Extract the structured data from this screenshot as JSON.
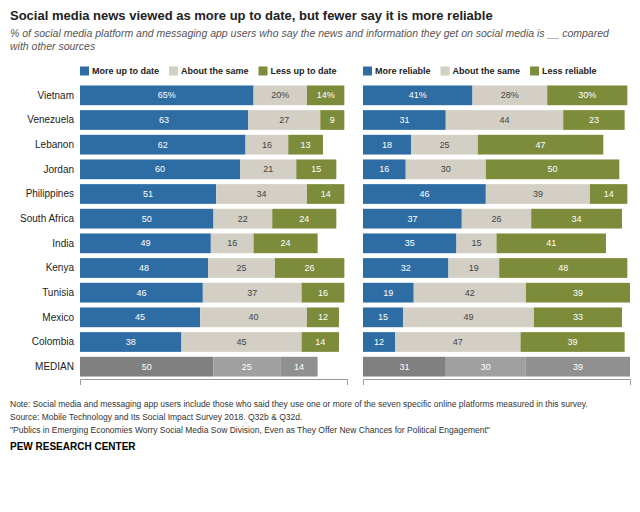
{
  "chart_data": [
    {
      "type": "bar",
      "orientation": "horizontal",
      "stacked": true,
      "data_labels": true,
      "tick_labels": "y",
      "legend": "top",
      "title": "Social media news viewed as more up to date, but fewer say it is more reliable",
      "subtitle": "% of social media platform and messaging app users who say the news and information they get on social media is __ compared with other sources",
      "categories": [
        "Vietnam",
        "Venezuela",
        "Lebanon",
        "Jordan",
        "Philippines",
        "South Africa",
        "India",
        "Kenya",
        "Tunisia",
        "Mexico",
        "Colombia",
        "MEDIAN"
      ],
      "xlim": [
        0,
        100
      ],
      "series": [
        {
          "name": "More up to date",
          "color": "#2e6da4",
          "colors": [
            "#2e6da4",
            "#2e6da4",
            "#2e6da4",
            "#2e6da4",
            "#2e6da4",
            "#2e6da4",
            "#2e6da4",
            "#2e6da4",
            "#2e6da4",
            "#2e6da4",
            "#2e6da4",
            "#808080"
          ],
          "values": [
            65,
            63,
            62,
            60,
            51,
            50,
            49,
            48,
            46,
            45,
            38,
            50
          ],
          "value_labels": [
            "65%",
            "63",
            "62",
            "60",
            "51",
            "50",
            "49",
            "48",
            "46",
            "45",
            "38",
            "50"
          ]
        },
        {
          "name": "About the same",
          "color": "#d3cfc4",
          "colors": [
            "#d3cfc4",
            "#d3cfc4",
            "#d3cfc4",
            "#d3cfc4",
            "#d3cfc4",
            "#d3cfc4",
            "#d3cfc4",
            "#d3cfc4",
            "#d3cfc4",
            "#d3cfc4",
            "#d3cfc4",
            "#a0a0a0"
          ],
          "values": [
            20,
            27,
            16,
            21,
            34,
            22,
            16,
            25,
            37,
            40,
            45,
            25
          ],
          "value_labels": [
            "20%",
            "27",
            "16",
            "21",
            "34",
            "22",
            "16",
            "25",
            "37",
            "40",
            "45",
            "25"
          ]
        },
        {
          "name": "Less up to date",
          "color": "#7d8c3a",
          "colors": [
            "#7d8c3a",
            "#7d8c3a",
            "#7d8c3a",
            "#7d8c3a",
            "#7d8c3a",
            "#7d8c3a",
            "#7d8c3a",
            "#7d8c3a",
            "#7d8c3a",
            "#7d8c3a",
            "#7d8c3a",
            "#909090"
          ],
          "values": [
            14,
            9,
            13,
            15,
            14,
            24,
            24,
            26,
            16,
            12,
            14,
            14
          ],
          "value_labels": [
            "14%",
            "9",
            "13",
            "15",
            "14",
            "24",
            "24",
            "26",
            "16",
            "12",
            "14",
            "14"
          ]
        }
      ],
      "annotations": [
        "Note: Social media and messaging app users include those who said they use one or more of the seven specific online platforms measured in this survey.",
        "Source: Mobile Technology and Its Social Impact Survey 2018. Q32b & Q32d.",
        "\"Publics in Emerging Economies Worry Social Media Sow Division, Even as They Offer New Chances for Political Engagement\"",
        "PEW RESEARCH CENTER"
      ]
    },
    {
      "type": "bar",
      "orientation": "horizontal",
      "stacked": true,
      "data_labels": true,
      "tick_labels": false,
      "legend": "top",
      "categories": [
        "Vietnam",
        "Venezuela",
        "Lebanon",
        "Jordan",
        "Philippines",
        "South Africa",
        "India",
        "Kenya",
        "Tunisia",
        "Mexico",
        "Colombia",
        "MEDIAN"
      ],
      "xlim": [
        0,
        100
      ],
      "series": [
        {
          "name": "More reliable",
          "color": "#2e6da4",
          "colors": [
            "#2e6da4",
            "#2e6da4",
            "#2e6da4",
            "#2e6da4",
            "#2e6da4",
            "#2e6da4",
            "#2e6da4",
            "#2e6da4",
            "#2e6da4",
            "#2e6da4",
            "#2e6da4",
            "#808080"
          ],
          "values": [
            41,
            31,
            18,
            16,
            46,
            37,
            35,
            32,
            19,
            15,
            12,
            31
          ],
          "value_labels": [
            "41%",
            "31",
            "18",
            "16",
            "46",
            "37",
            "35",
            "32",
            "19",
            "15",
            "12",
            "31"
          ]
        },
        {
          "name": "About the same",
          "color": "#d3cfc4",
          "colors": [
            "#d3cfc4",
            "#d3cfc4",
            "#d3cfc4",
            "#d3cfc4",
            "#d3cfc4",
            "#d3cfc4",
            "#d3cfc4",
            "#d3cfc4",
            "#d3cfc4",
            "#d3cfc4",
            "#d3cfc4",
            "#a0a0a0"
          ],
          "values": [
            28,
            44,
            25,
            30,
            39,
            26,
            15,
            19,
            42,
            49,
            47,
            30
          ],
          "value_labels": [
            "28%",
            "44",
            "25",
            "30",
            "39",
            "26",
            "15",
            "19",
            "42",
            "49",
            "47",
            "30"
          ]
        },
        {
          "name": "Less reliable",
          "color": "#7d8c3a",
          "colors": [
            "#7d8c3a",
            "#7d8c3a",
            "#7d8c3a",
            "#7d8c3a",
            "#7d8c3a",
            "#7d8c3a",
            "#7d8c3a",
            "#7d8c3a",
            "#7d8c3a",
            "#7d8c3a",
            "#7d8c3a",
            "#909090"
          ],
          "values": [
            30,
            23,
            47,
            50,
            14,
            34,
            41,
            48,
            39,
            33,
            39,
            39
          ],
          "value_labels": [
            "30%",
            "23",
            "47",
            "50",
            "14",
            "34",
            "41",
            "48",
            "39",
            "33",
            "39",
            "39"
          ]
        }
      ]
    }
  ]
}
